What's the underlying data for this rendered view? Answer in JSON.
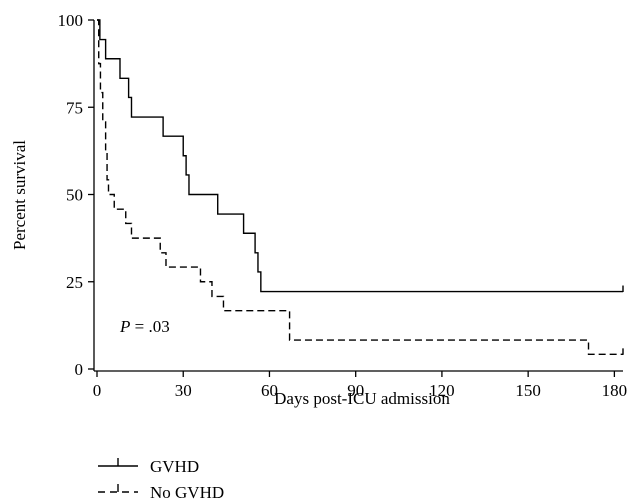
{
  "chart_data": {
    "type": "line",
    "xlabel": "Days post-ICU admission",
    "ylabel": "Percent survival",
    "xlim": [
      0,
      183
    ],
    "ylim": [
      0,
      100
    ],
    "xticks": [
      0,
      30,
      60,
      90,
      120,
      150,
      180
    ],
    "yticks": [
      0,
      25,
      50,
      75,
      100
    ],
    "grid": false,
    "legend_position": "bottom-left",
    "annotation": {
      "italic": "P",
      "text": " = .03"
    },
    "series": [
      {
        "name": "GVHD",
        "style": "solid",
        "color": "#000000",
        "steps": [
          [
            0,
            100
          ],
          [
            1,
            94.4
          ],
          [
            3,
            88.9
          ],
          [
            8,
            83.3
          ],
          [
            11,
            77.8
          ],
          [
            12,
            72.2
          ],
          [
            23,
            66.7
          ],
          [
            30,
            61.1
          ],
          [
            31,
            55.6
          ],
          [
            32,
            50.0
          ],
          [
            42,
            44.4
          ],
          [
            51,
            38.9
          ],
          [
            55,
            33.3
          ],
          [
            56,
            27.8
          ],
          [
            57,
            22.2
          ],
          [
            183,
            22.2
          ]
        ],
        "censored": [
          [
            183,
            22.2
          ]
        ]
      },
      {
        "name": "No GVHD",
        "style": "dashed",
        "color": "#000000",
        "steps": [
          [
            0,
            100
          ],
          [
            0.6,
            87.5
          ],
          [
            1.2,
            79.2
          ],
          [
            2,
            70.8
          ],
          [
            3,
            62.5
          ],
          [
            3.5,
            54.2
          ],
          [
            4,
            50.0
          ],
          [
            6,
            45.8
          ],
          [
            10,
            41.7
          ],
          [
            12,
            37.5
          ],
          [
            22,
            33.3
          ],
          [
            24,
            29.2
          ],
          [
            36,
            25.0
          ],
          [
            40,
            20.8
          ],
          [
            44,
            16.7
          ],
          [
            67,
            8.3
          ],
          [
            171,
            4.2
          ],
          [
            183,
            4.2
          ]
        ],
        "censored": [
          [
            183,
            4.2
          ]
        ]
      }
    ]
  }
}
